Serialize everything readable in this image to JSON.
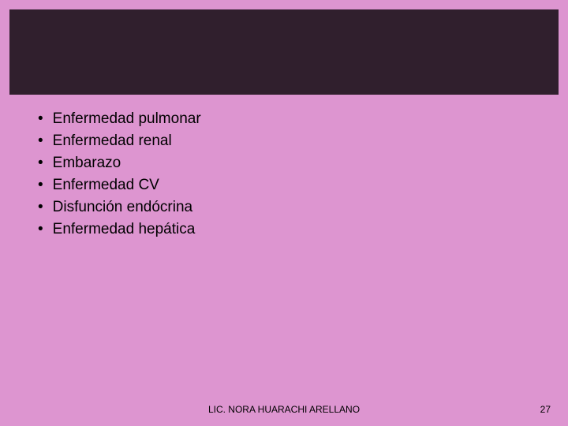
{
  "slide": {
    "background_color": "#dd95d0",
    "header_band_color": "#301f2d",
    "bullets": [
      "Enfermedad pulmonar",
      "Enfermedad renal",
      "Embarazo",
      "Enfermedad CV",
      "Disfunción endócrina",
      "Enfermedad hepática"
    ],
    "bullet_char": "•",
    "text_color": "#000000",
    "bullet_fontsize": 19,
    "footer_author": "LIC. NORA HUARACHI ARELLANO",
    "footer_page": "27",
    "footer_fontsize": 12
  }
}
